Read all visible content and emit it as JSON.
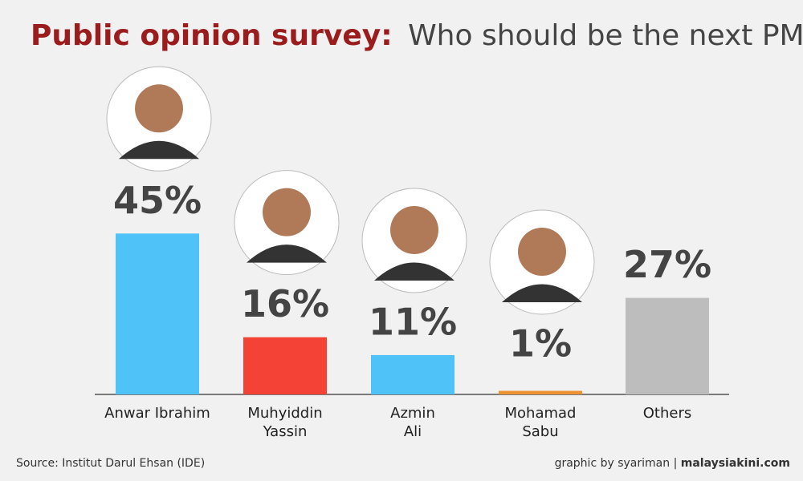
{
  "chart_data": {
    "type": "bar",
    "title": "Public opinion survey:",
    "subtitle": "Who should be the next PM?",
    "categories": [
      "Anwar Ibrahim",
      "Muhyiddin\nYassin",
      "Azmin\nAli",
      "Mohamad\nSabu",
      "Others"
    ],
    "values": [
      45,
      16,
      11,
      1,
      27
    ],
    "value_labels": [
      "45%",
      "16%",
      "11%",
      "1%",
      "27%"
    ],
    "colors": [
      "#4fc3f7",
      "#f44336",
      "#4fc3f7",
      "#ef9231",
      "#bdbdbd"
    ],
    "ylim": [
      0,
      50
    ],
    "source": "Source: Institut Darul Ehsan (IDE)",
    "credit": "graphic by syariman |",
    "brand": "malaysiakini.com"
  }
}
